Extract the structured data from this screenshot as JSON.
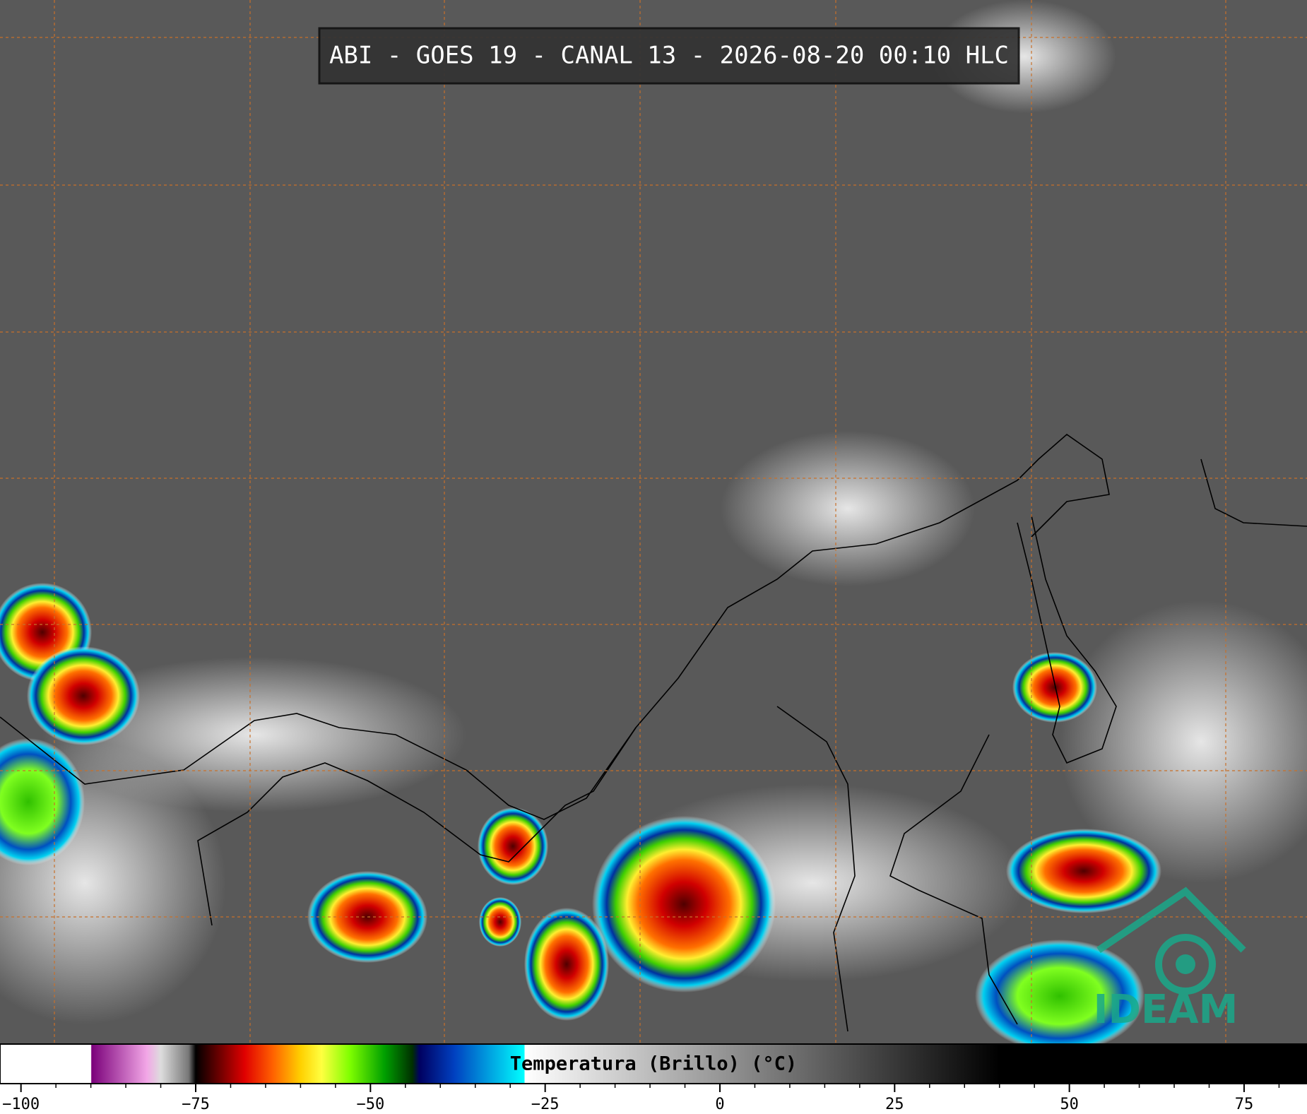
{
  "header": {
    "title": "ABI - GOES 19 - CANAL 13 - 2026-08-20 00:10 HLC"
  },
  "logo": {
    "text": "IDEAM"
  },
  "colorbar": {
    "label": "Temperatura (Brillo) (°C)",
    "xlim": [
      -103,
      84
    ],
    "xticks": [
      {
        "value": -100,
        "label": "−100"
      },
      {
        "value": -75,
        "label": "−75"
      },
      {
        "value": -50,
        "label": "−50"
      },
      {
        "value": -25,
        "label": "−25"
      },
      0,
      25,
      50,
      75
    ],
    "minor_xticks": [
      -95,
      -90,
      -85,
      -80,
      -70,
      -65,
      -60,
      -55,
      -45,
      -40,
      -35,
      -30,
      -20,
      -15,
      -10,
      -5,
      5,
      10,
      15,
      20,
      30,
      35,
      40,
      45,
      55,
      60,
      65,
      70,
      80
    ],
    "colorscale": [
      {
        "value": -103,
        "color": "#ffffff"
      },
      {
        "value": -90,
        "color": "#ffffff"
      },
      {
        "value": -89.9,
        "color": "#7a007a"
      },
      {
        "value": -82,
        "color": "#f2a6e6"
      },
      {
        "value": -80,
        "color": "#dddddd"
      },
      {
        "value": -76,
        "color": "#777777"
      },
      {
        "value": -75,
        "color": "#000000"
      },
      {
        "value": -72,
        "color": "#600000"
      },
      {
        "value": -68,
        "color": "#e00000"
      },
      {
        "value": -64,
        "color": "#ff6000"
      },
      {
        "value": -60,
        "color": "#ffd000"
      },
      {
        "value": -57,
        "color": "#ffff40"
      },
      {
        "value": -53,
        "color": "#80ff00"
      },
      {
        "value": -48,
        "color": "#00a000"
      },
      {
        "value": -44,
        "color": "#003000"
      },
      {
        "value": -43,
        "color": "#000060"
      },
      {
        "value": -38,
        "color": "#0040c0"
      },
      {
        "value": -33,
        "color": "#00a0e0"
      },
      {
        "value": -28,
        "color": "#00ffff"
      },
      {
        "value": -27.9,
        "color": "#ffffff"
      },
      {
        "value": 40,
        "color": "#000000"
      },
      {
        "value": 84,
        "color": "#000000"
      }
    ]
  }
}
